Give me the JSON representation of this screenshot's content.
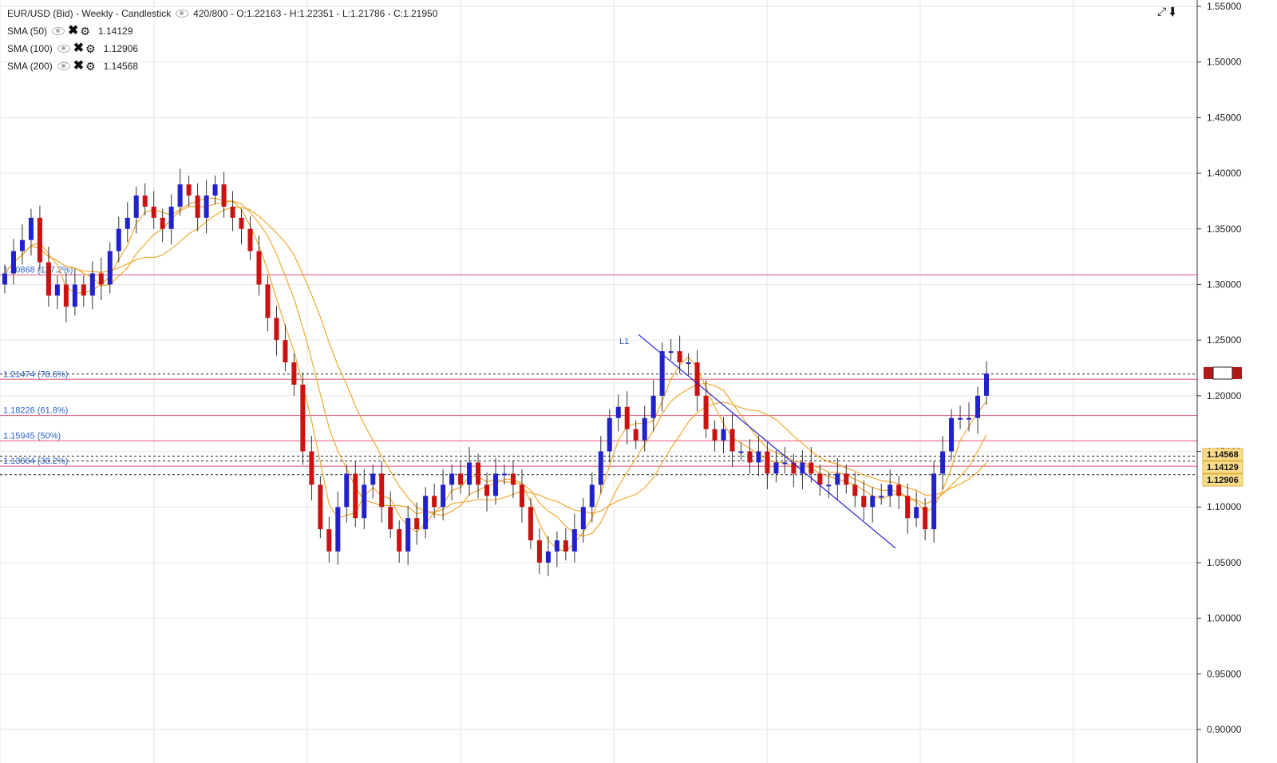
{
  "header": {
    "instrument": "EUR/USD (Bid) - Weekly - Candlestick",
    "ohlc": "420/800 - O:1.22163 - H:1.22351 - L:1.21786 - C:1.21950"
  },
  "indicators": [
    {
      "label": "SMA (50)",
      "value": "1.14129",
      "color": "#f0a830"
    },
    {
      "label": "SMA (100)",
      "value": "1.12906",
      "color": "#f0a830"
    },
    {
      "label": "SMA (200)",
      "value": "1.14568",
      "color": "#f0a830"
    }
  ],
  "icons": {
    "eye": "eye-icon",
    "remove": "close-icon",
    "settings": "gear-icon",
    "expand": "expand-icon",
    "download": "download-icon"
  },
  "chart_data": {
    "type": "candlestick",
    "ylim": [
      0.9,
      1.55
    ],
    "yticks": [
      "1.55000",
      "1.50000",
      "1.45000",
      "1.40000",
      "1.35000",
      "1.30000",
      "1.25000",
      "1.20000",
      "1.15000",
      "1.10000",
      "1.05000",
      "1.00000",
      "0.95000",
      "0.90000"
    ],
    "grid": true,
    "colors": {
      "up": "#2222cc",
      "down": "#cc1111",
      "sma": "#f0a830",
      "fib": "#e05570",
      "trend": "#2222dd"
    },
    "fib_levels": [
      {
        "price": 1.30868,
        "label": "1.30868 (127.2%)"
      },
      {
        "price": 1.21474,
        "label": "1.21474 (78.6%)"
      },
      {
        "price": 1.18226,
        "label": "1.18226 (61.8%)"
      },
      {
        "price": 1.15945,
        "label": "1.15945 (50%)"
      },
      {
        "price": 1.13664,
        "label": "1.13664 (38.2%)"
      }
    ],
    "dashed_levels": [
      1.2195,
      1.14568,
      1.14129,
      1.12906
    ],
    "price_tags": [
      {
        "price": 1.14568,
        "text": "1.14568"
      },
      {
        "price": 1.14129,
        "text": "1.14129"
      },
      {
        "price": 1.12906,
        "text": "1.12906"
      }
    ],
    "trendline": {
      "label": "L1",
      "start": [
        0.533,
        1.255
      ],
      "end": [
        0.748,
        1.063
      ]
    },
    "closes": [
      1.31,
      1.33,
      1.34,
      1.36,
      1.32,
      1.29,
      1.3,
      1.28,
      1.3,
      1.29,
      1.31,
      1.3,
      1.33,
      1.35,
      1.36,
      1.38,
      1.37,
      1.36,
      1.35,
      1.37,
      1.39,
      1.38,
      1.36,
      1.38,
      1.39,
      1.37,
      1.36,
      1.35,
      1.33,
      1.3,
      1.27,
      1.25,
      1.23,
      1.21,
      1.15,
      1.12,
      1.08,
      1.06,
      1.1,
      1.13,
      1.09,
      1.12,
      1.13,
      1.1,
      1.08,
      1.06,
      1.09,
      1.08,
      1.11,
      1.1,
      1.12,
      1.13,
      1.12,
      1.14,
      1.12,
      1.11,
      1.13,
      1.13,
      1.12,
      1.1,
      1.07,
      1.05,
      1.06,
      1.07,
      1.06,
      1.08,
      1.1,
      1.12,
      1.15,
      1.18,
      1.19,
      1.17,
      1.16,
      1.18,
      1.2,
      1.24,
      1.24,
      1.23,
      1.23,
      1.2,
      1.17,
      1.16,
      1.17,
      1.15,
      1.15,
      1.14,
      1.15,
      1.13,
      1.14,
      1.14,
      1.13,
      1.14,
      1.13,
      1.12,
      1.12,
      1.13,
      1.12,
      1.11,
      1.1,
      1.11,
      1.11,
      1.12,
      1.11,
      1.09,
      1.1,
      1.08,
      1.13,
      1.15,
      1.18,
      1.18,
      1.18,
      1.2,
      1.22
    ]
  }
}
